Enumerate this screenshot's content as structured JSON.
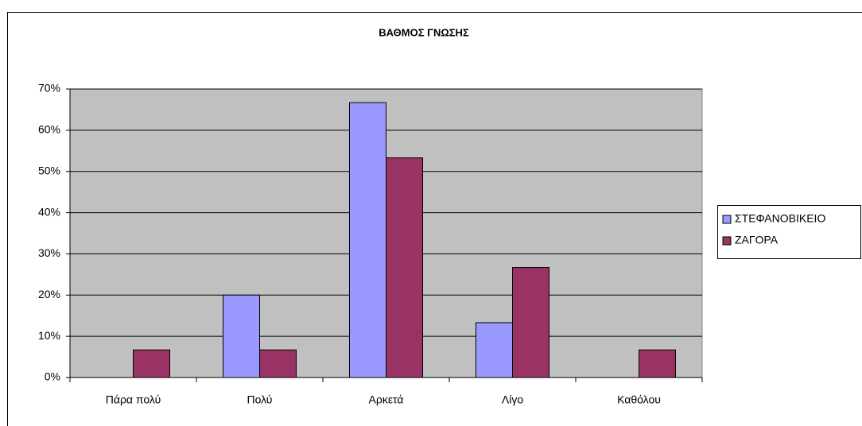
{
  "chart_data": {
    "type": "bar",
    "title": "ΒΑΘΜΟΣ ΓΝΩΣΗΣ",
    "categories": [
      "Πάρα πολύ",
      "Πολύ",
      "Αρκετά",
      "Λίγο",
      "Καθόλου"
    ],
    "series": [
      {
        "name": "ΣΤΕΦΑΝΟΒΙΚΕΙΟ",
        "color": "#9999ff",
        "values": [
          0,
          20,
          66.7,
          13.3,
          0
        ]
      },
      {
        "name": "ΖΑΓΟΡΑ",
        "color": "#993366",
        "values": [
          6.7,
          6.7,
          53.3,
          26.7,
          6.7
        ]
      }
    ],
    "ylim": [
      0,
      70
    ],
    "yticks": [
      {
        "value": 0,
        "label": "0%"
      },
      {
        "value": 10,
        "label": "10%"
      },
      {
        "value": 20,
        "label": "20%"
      },
      {
        "value": 30,
        "label": "30%"
      },
      {
        "value": 40,
        "label": "40%"
      },
      {
        "value": 50,
        "label": "50%"
      },
      {
        "value": 60,
        "label": "60%"
      },
      {
        "value": 70,
        "label": "70%"
      }
    ],
    "grid": true,
    "legend": "right"
  }
}
